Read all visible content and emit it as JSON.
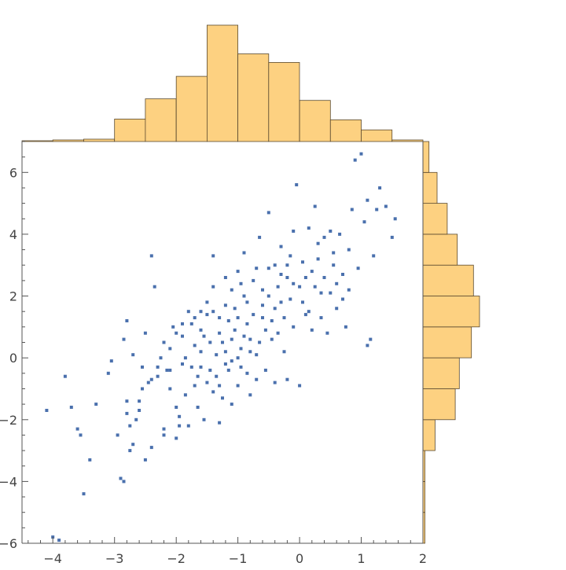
{
  "chart_data": {
    "type": "scatter",
    "title": "",
    "xlabel": "",
    "ylabel": "",
    "xlim": [
      -4.5,
      2
    ],
    "ylim": [
      -6,
      7
    ],
    "x_ticks": [
      "−4",
      "−3",
      "−2",
      "−1",
      "0",
      "1",
      "2"
    ],
    "y_ticks": [
      "−6",
      "−4",
      "−2",
      "0",
      "2",
      "4",
      "6"
    ],
    "colors": {
      "points": "#4A70AD",
      "bars": "#FDD181",
      "bar_edge": "#5a4a30"
    },
    "grid": false,
    "points": [
      [
        -4.1,
        -1.7
      ],
      [
        -4.0,
        -5.8
      ],
      [
        -3.9,
        -5.9
      ],
      [
        -3.8,
        -0.6
      ],
      [
        -3.7,
        -1.6
      ],
      [
        -3.6,
        -2.3
      ],
      [
        -3.55,
        -2.5
      ],
      [
        -3.5,
        -4.4
      ],
      [
        -3.4,
        -3.3
      ],
      [
        -3.3,
        -1.5
      ],
      [
        -3.1,
        -0.5
      ],
      [
        -3.05,
        -0.1
      ],
      [
        -2.95,
        -2.5
      ],
      [
        -2.9,
        -3.9
      ],
      [
        -2.85,
        -4.0
      ],
      [
        -2.85,
        0.6
      ],
      [
        -2.8,
        1.2
      ],
      [
        -2.8,
        -1.4
      ],
      [
        -2.8,
        -1.8
      ],
      [
        -2.75,
        -2.2
      ],
      [
        -2.75,
        -3.0
      ],
      [
        -2.7,
        -2.8
      ],
      [
        -2.7,
        0.1
      ],
      [
        -2.65,
        -2.0
      ],
      [
        -2.6,
        -1.4
      ],
      [
        -2.6,
        -1.7
      ],
      [
        -2.55,
        -0.3
      ],
      [
        -2.5,
        0.8
      ],
      [
        -2.5,
        -3.3
      ],
      [
        -2.45,
        -0.8
      ],
      [
        -2.4,
        3.3
      ],
      [
        -2.4,
        -2.9
      ],
      [
        -2.35,
        2.3
      ],
      [
        -2.3,
        -0.6
      ],
      [
        -2.25,
        0.0
      ],
      [
        -2.2,
        -2.3
      ],
      [
        -2.2,
        -2.5
      ],
      [
        -2.15,
        -0.4
      ],
      [
        -2.1,
        0.3
      ],
      [
        -2.1,
        -0.4
      ],
      [
        -2.05,
        1.0
      ],
      [
        -2.0,
        -1.6
      ],
      [
        -2.0,
        -2.6
      ],
      [
        -1.95,
        -2.2
      ],
      [
        -1.9,
        -0.2
      ],
      [
        -1.9,
        0.7
      ],
      [
        -1.85,
        -1.2
      ],
      [
        -1.8,
        -2.2
      ],
      [
        -1.75,
        1.1
      ],
      [
        -1.7,
        -0.9
      ],
      [
        -1.7,
        0.4
      ],
      [
        -1.65,
        -0.6
      ],
      [
        -1.6,
        0.9
      ],
      [
        -1.6,
        -0.3
      ],
      [
        -1.55,
        -2.0
      ],
      [
        -1.5,
        1.4
      ],
      [
        -1.5,
        1.8
      ],
      [
        -1.45,
        -0.4
      ],
      [
        -1.4,
        3.3
      ],
      [
        -1.4,
        -1.1
      ],
      [
        -1.35,
        -0.6
      ],
      [
        -1.3,
        1.3
      ],
      [
        -1.3,
        -2.1
      ],
      [
        -1.25,
        0.5
      ],
      [
        -1.2,
        1.7
      ],
      [
        -1.2,
        -0.2
      ],
      [
        -1.15,
        1.2
      ],
      [
        -1.1,
        -1.5
      ],
      [
        -1.1,
        -0.1
      ],
      [
        -1.05,
        0.9
      ],
      [
        -1.0,
        2.8
      ],
      [
        -1.0,
        -0.9
      ],
      [
        -0.95,
        0.3
      ],
      [
        -0.9,
        3.4
      ],
      [
        -0.9,
        2.0
      ],
      [
        -0.85,
        1.1
      ],
      [
        -0.8,
        -1.2
      ],
      [
        -0.8,
        0.6
      ],
      [
        -0.75,
        2.5
      ],
      [
        -0.7,
        0.1
      ],
      [
        -0.7,
        -0.7
      ],
      [
        -0.65,
        3.9
      ],
      [
        -0.6,
        1.3
      ],
      [
        -0.6,
        2.2
      ],
      [
        -0.55,
        -0.4
      ],
      [
        -0.5,
        4.7
      ],
      [
        -0.5,
        2.9
      ],
      [
        -0.45,
        0.6
      ],
      [
        -0.4,
        3.0
      ],
      [
        -0.4,
        -0.8
      ],
      [
        -0.35,
        2.3
      ],
      [
        -0.3,
        1.8
      ],
      [
        -0.3,
        3.6
      ],
      [
        -0.25,
        0.2
      ],
      [
        -0.2,
        -0.7
      ],
      [
        -0.2,
        2.6
      ],
      [
        -0.15,
        3.3
      ],
      [
        -0.1,
        4.1
      ],
      [
        -0.1,
        1.0
      ],
      [
        -0.05,
        5.6
      ],
      [
        0.0,
        -0.9
      ],
      [
        0.0,
        2.3
      ],
      [
        0.05,
        3.1
      ],
      [
        0.1,
        1.4
      ],
      [
        0.15,
        4.2
      ],
      [
        0.2,
        2.8
      ],
      [
        0.2,
        0.9
      ],
      [
        0.25,
        4.9
      ],
      [
        0.3,
        3.2
      ],
      [
        0.35,
        2.1
      ],
      [
        0.4,
        3.9
      ],
      [
        0.45,
        0.8
      ],
      [
        0.5,
        4.1
      ],
      [
        0.55,
        3.4
      ],
      [
        0.6,
        1.6
      ],
      [
        0.65,
        4.0
      ],
      [
        0.7,
        2.7
      ],
      [
        0.75,
        1.0
      ],
      [
        0.8,
        3.5
      ],
      [
        0.85,
        4.8
      ],
      [
        0.9,
        6.4
      ],
      [
        0.95,
        2.9
      ],
      [
        1.0,
        6.6
      ],
      [
        1.05,
        4.4
      ],
      [
        1.1,
        5.1
      ],
      [
        1.1,
        0.4
      ],
      [
        1.15,
        0.6
      ],
      [
        1.2,
        3.3
      ],
      [
        1.25,
        4.8
      ],
      [
        1.3,
        5.5
      ],
      [
        1.4,
        4.9
      ],
      [
        1.5,
        3.9
      ],
      [
        1.55,
        4.5
      ],
      [
        -2.3,
        -0.3
      ],
      [
        -2.1,
        -1.0
      ],
      [
        -1.95,
        -1.9
      ],
      [
        -1.85,
        0.0
      ],
      [
        -1.75,
        -0.3
      ],
      [
        -1.65,
        -1.6
      ],
      [
        -1.6,
        0.2
      ],
      [
        -1.55,
        0.7
      ],
      [
        -1.5,
        -0.8
      ],
      [
        -1.45,
        0.5
      ],
      [
        -1.4,
        1.5
      ],
      [
        -1.35,
        0.1
      ],
      [
        -1.3,
        0.8
      ],
      [
        -1.3,
        -0.9
      ],
      [
        -1.25,
        -1.3
      ],
      [
        -1.2,
        0.2
      ],
      [
        -1.15,
        -0.4
      ],
      [
        -1.1,
        0.6
      ],
      [
        -1.05,
        1.6
      ],
      [
        -1.0,
        0.0
      ],
      [
        -1.0,
        1.3
      ],
      [
        -0.95,
        -0.3
      ],
      [
        -0.9,
        0.7
      ],
      [
        -0.85,
        1.8
      ],
      [
        -0.85,
        -0.5
      ],
      [
        -0.8,
        0.2
      ],
      [
        -0.75,
        1.4
      ],
      [
        -0.7,
        2.9
      ],
      [
        -0.65,
        0.5
      ],
      [
        -0.6,
        1.7
      ],
      [
        -0.55,
        0.9
      ],
      [
        -0.5,
        2.0
      ],
      [
        -0.45,
        1.2
      ],
      [
        -0.4,
        1.6
      ],
      [
        -0.35,
        0.8
      ],
      [
        -0.3,
        2.7
      ],
      [
        -0.25,
        1.3
      ],
      [
        -0.2,
        3.0
      ],
      [
        -0.15,
        1.9
      ],
      [
        -0.1,
        2.4
      ],
      [
        0.05,
        1.8
      ],
      [
        0.1,
        2.6
      ],
      [
        0.15,
        1.5
      ],
      [
        0.25,
        2.3
      ],
      [
        0.3,
        3.7
      ],
      [
        0.35,
        1.3
      ],
      [
        0.4,
        2.6
      ],
      [
        0.5,
        2.1
      ],
      [
        0.55,
        3.0
      ],
      [
        0.6,
        2.4
      ],
      [
        0.7,
        1.9
      ],
      [
        0.8,
        2.2
      ],
      [
        -1.1,
        2.2
      ],
      [
        -1.2,
        2.6
      ],
      [
        -1.4,
        2.3
      ],
      [
        -0.95,
        2.4
      ],
      [
        -1.6,
        1.5
      ],
      [
        -1.7,
        1.3
      ],
      [
        -1.8,
        1.5
      ],
      [
        -1.9,
        1.1
      ],
      [
        -2.0,
        0.8
      ],
      [
        -2.2,
        0.5
      ],
      [
        -2.4,
        -0.7
      ],
      [
        -2.55,
        -1.0
      ]
    ],
    "x_hist": {
      "bin_edges": [
        -4.5,
        -4.0,
        -3.5,
        -3.0,
        -2.5,
        -2.0,
        -1.5,
        -1.0,
        -0.5,
        0.0,
        0.5,
        1.0,
        1.5,
        2.0
      ],
      "counts": [
        1,
        2,
        3,
        29,
        55,
        84,
        150,
        113,
        102,
        53,
        28,
        15,
        2
      ]
    },
    "y_hist": {
      "bin_edges": [
        -6,
        -5,
        -4,
        -3,
        -2,
        -1,
        0,
        1,
        2,
        3,
        4,
        5,
        6,
        7
      ],
      "counts": [
        1,
        1,
        1,
        6,
        16,
        18,
        24,
        28,
        25,
        17,
        12,
        7,
        3
      ]
    }
  }
}
